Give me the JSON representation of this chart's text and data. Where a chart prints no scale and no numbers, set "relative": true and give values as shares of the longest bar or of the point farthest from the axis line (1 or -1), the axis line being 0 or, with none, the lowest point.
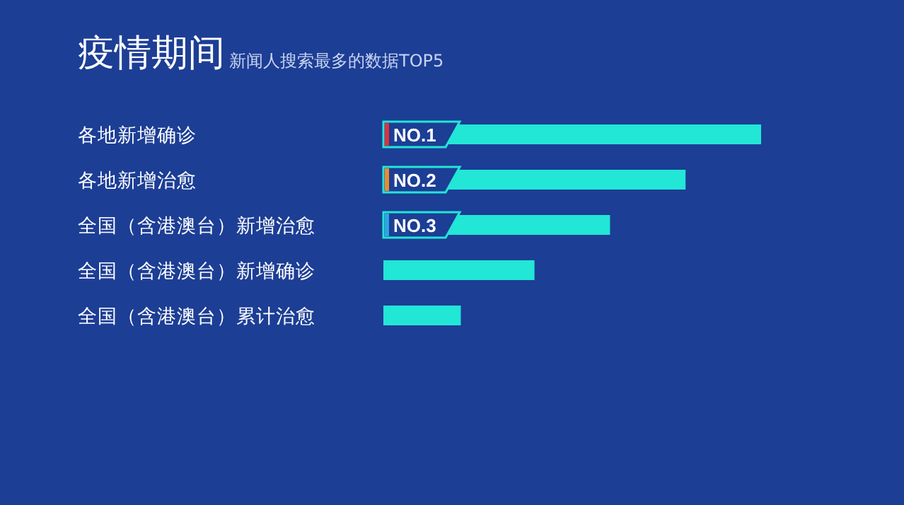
{
  "chart_data": {
    "type": "bar",
    "orientation": "horizontal",
    "relative": true,
    "title": "疫情期间",
    "subtitle": "新闻人搜索最多的数据TOP5",
    "categories": [
      "各地新增确诊",
      "各地新增治愈",
      "全国（含港澳台）新增治愈",
      "全国（含港澳台）新增确诊",
      "全国（含港澳台）累计治愈"
    ],
    "values": [
      1,
      0.8,
      0.6,
      0.4,
      0.205
    ],
    "color": "#22e6d6",
    "annotations": [
      "NO.1",
      "NO.2",
      "NO.3"
    ]
  }
}
